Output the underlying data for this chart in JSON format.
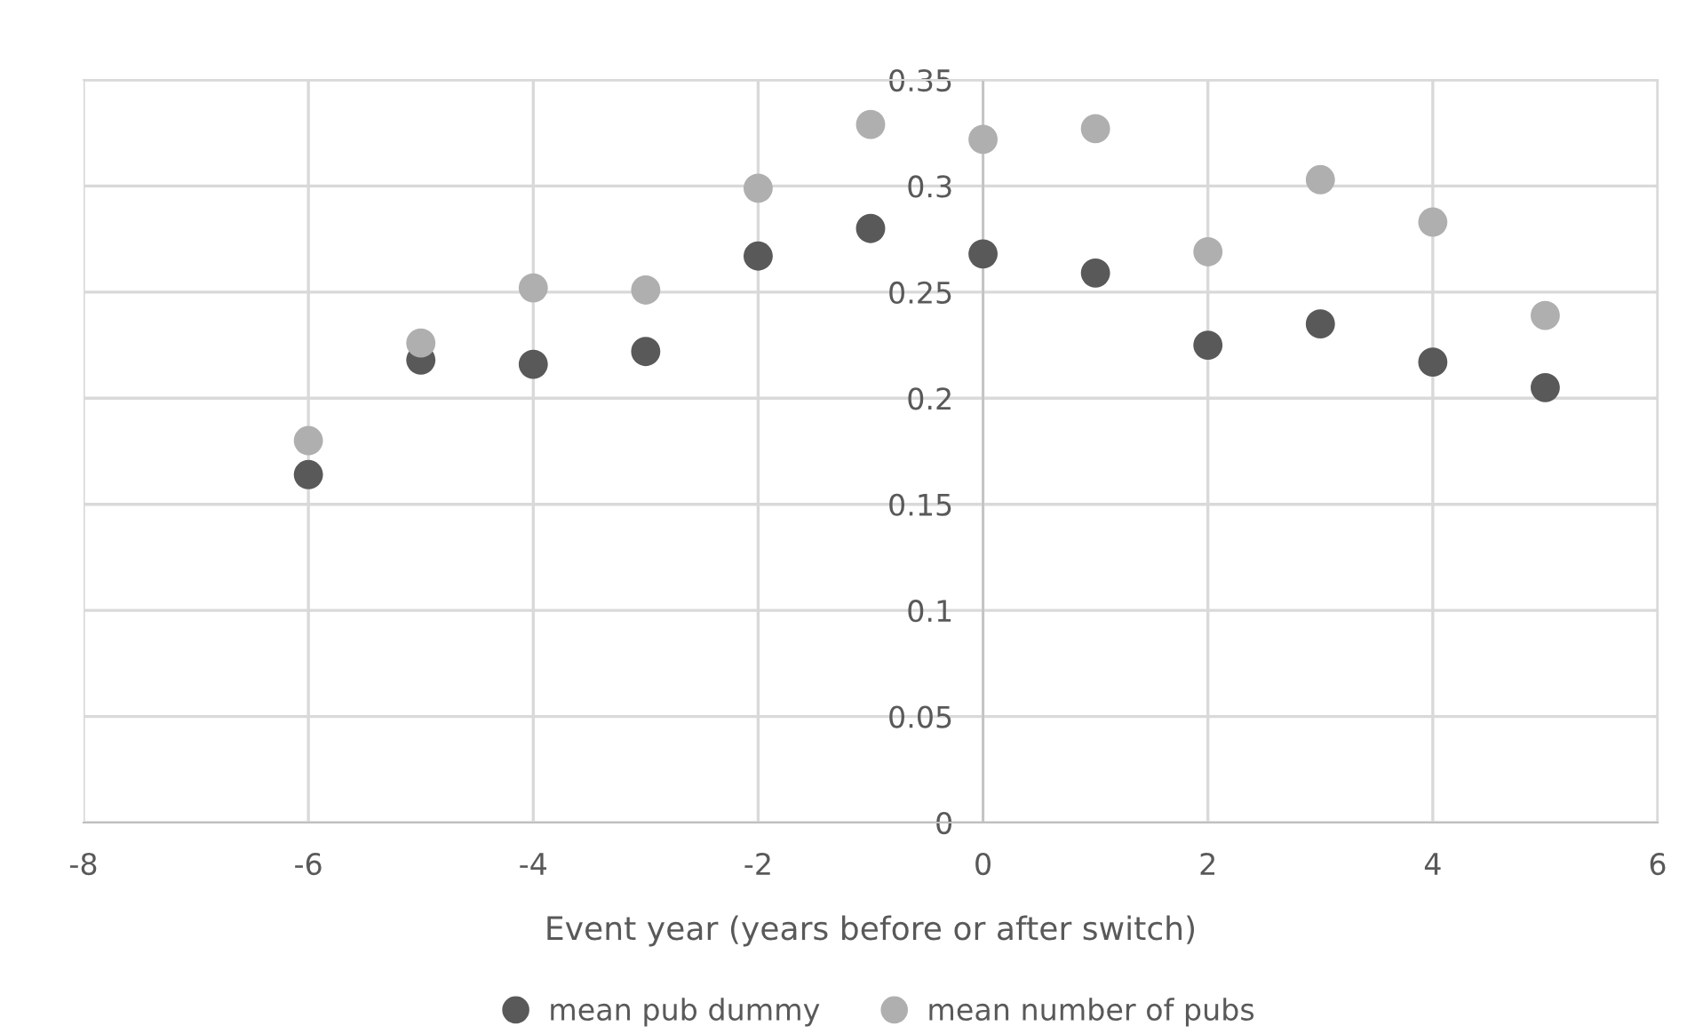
{
  "chart_data": {
    "type": "scatter",
    "xlabel": "Event year (years before or after switch)",
    "x": [
      -6,
      -5,
      -4,
      -3,
      -2,
      -1,
      0,
      1,
      2,
      3,
      4,
      5
    ],
    "series": [
      {
        "name": "mean pub dummy",
        "color": "#595959",
        "values": [
          0.164,
          0.218,
          0.216,
          0.222,
          0.267,
          0.28,
          0.268,
          0.259,
          0.225,
          0.235,
          0.217,
          0.205
        ]
      },
      {
        "name": "mean number of pubs",
        "color": "#afafaf",
        "values": [
          0.18,
          0.226,
          0.252,
          0.251,
          0.299,
          0.329,
          0.322,
          0.327,
          0.269,
          0.303,
          0.283,
          0.239
        ]
      }
    ],
    "xlim": [
      -8,
      6
    ],
    "xticks": [
      -8,
      -6,
      -4,
      -2,
      0,
      2,
      4,
      6
    ],
    "ylim": [
      0,
      0.35
    ],
    "yticks": [
      0,
      0.05,
      0.1,
      0.15,
      0.2,
      0.25,
      0.3,
      0.35
    ],
    "grid": true,
    "legend": "bottom",
    "marker": "circle"
  }
}
